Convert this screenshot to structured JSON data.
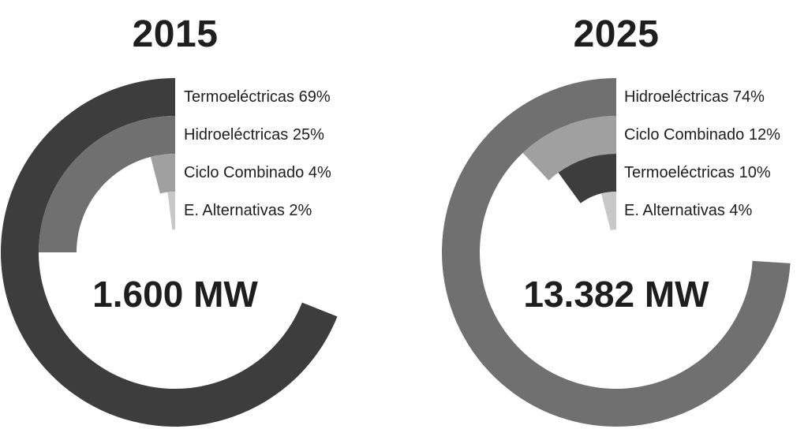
{
  "chart_data": [
    {
      "type": "pie",
      "subtype": "radial-concentric-rings",
      "title": "2015",
      "total_label": "1.600 MW",
      "total_mw": 1600,
      "direction": "counterclockwise-from-top",
      "categories": [
        "Termoeléctricas",
        "Hidroeléctricas",
        "Ciclo Combinado",
        "E. Alternativas"
      ],
      "values": [
        69,
        25,
        4,
        2
      ],
      "unit": "%",
      "colors": [
        "#3d3d3d",
        "#717070",
        "#a0a0a0",
        "#c8c8c8"
      ],
      "labels": [
        "Termoeléctricas 69%",
        "Hidroeléctricas 25%",
        "Ciclo Combinado 4%",
        "E. Alternativas 2%"
      ]
    },
    {
      "type": "pie",
      "subtype": "radial-concentric-rings",
      "title": "2025",
      "total_label": "13.382 MW",
      "total_mw": 13382,
      "direction": "counterclockwise-from-top",
      "categories": [
        "Hidroeléctricas",
        "Ciclo Combinado",
        "Termoeléctricas",
        "E. Alternativas"
      ],
      "values": [
        74,
        12,
        10,
        4
      ],
      "unit": "%",
      "colors": [
        "#717070",
        "#a0a0a0",
        "#3d3d3d",
        "#c8c8c8"
      ],
      "labels": [
        "Hidroeléctricas 74%",
        "Ciclo Combinado 12%",
        "Termoeléctricas 10%",
        "E. Alternativas 4%"
      ]
    }
  ],
  "charts": [
    {
      "year": "2015",
      "total": "1.600 MW",
      "rings": [
        {
          "label": "Termoeléctricas 69%",
          "value": 69,
          "color": "#3d3d3d"
        },
        {
          "label": "Hidroeléctricas 25%",
          "value": 25,
          "color": "#717070"
        },
        {
          "label": "Ciclo Combinado 4%",
          "value": 4,
          "color": "#a0a0a0"
        },
        {
          "label": "E. Alternativas 2%",
          "value": 2,
          "color": "#c8c8c8"
        }
      ]
    },
    {
      "year": "2025",
      "total": "13.382 MW",
      "rings": [
        {
          "label": "Hidroeléctricas 74%",
          "value": 74,
          "color": "#717070"
        },
        {
          "label": "Ciclo Combinado 12%",
          "value": 12,
          "color": "#a0a0a0"
        },
        {
          "label": "Termoeléctricas 10%",
          "value": 10,
          "color": "#3d3d3d"
        },
        {
          "label": "E. Alternativas 4%",
          "value": 4,
          "color": "#c8c8c8"
        }
      ]
    }
  ]
}
